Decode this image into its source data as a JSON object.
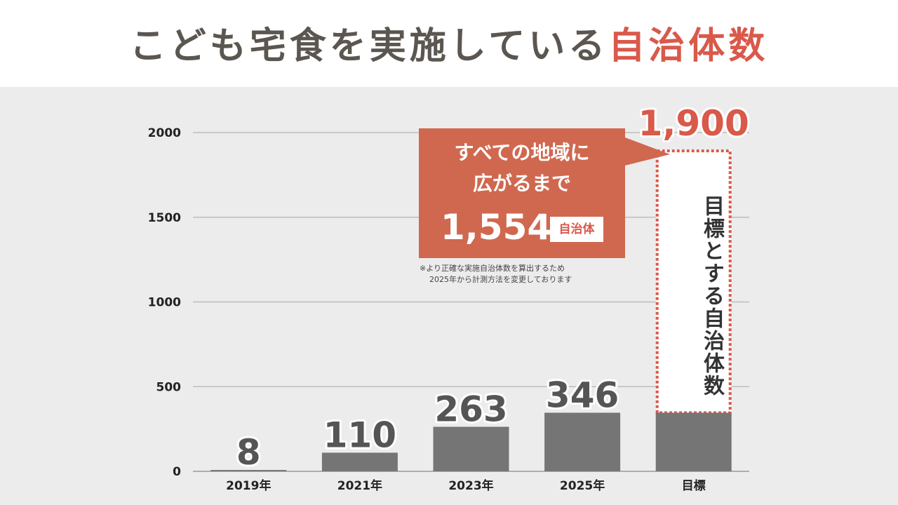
{
  "title": {
    "main": "こども宅食を実施している",
    "accent": "自治体数"
  },
  "colors": {
    "bar": "#757575",
    "accent": "#d9594a",
    "callout": "#d0684f",
    "panel": "#ececec",
    "grid": "#bdbdbd"
  },
  "callout": {
    "line1": "すべての地域に",
    "line2": "広がるまで",
    "number": "1,554",
    "badge": "自治体"
  },
  "note": {
    "line1": "※より正確な実施自治体数を算出するため",
    "line2": "2025年から計測方法を変更しております"
  },
  "target_label": "目標とする自治体数",
  "chart_data": {
    "type": "bar",
    "categories": [
      "2019年",
      "2021年",
      "2023年",
      "2025年",
      "目標"
    ],
    "values": [
      8,
      110,
      263,
      346,
      346
    ],
    "value_labels": [
      "8",
      "110",
      "263",
      "346",
      ""
    ],
    "target": {
      "category": "目標",
      "value": 1900,
      "label": "1,900"
    },
    "title": "",
    "xlabel": "",
    "ylabel": "",
    "ylim": [
      0,
      2000
    ],
    "yticks": [
      0,
      500,
      1000,
      1500,
      2000
    ],
    "grid": true,
    "legend": "none"
  }
}
